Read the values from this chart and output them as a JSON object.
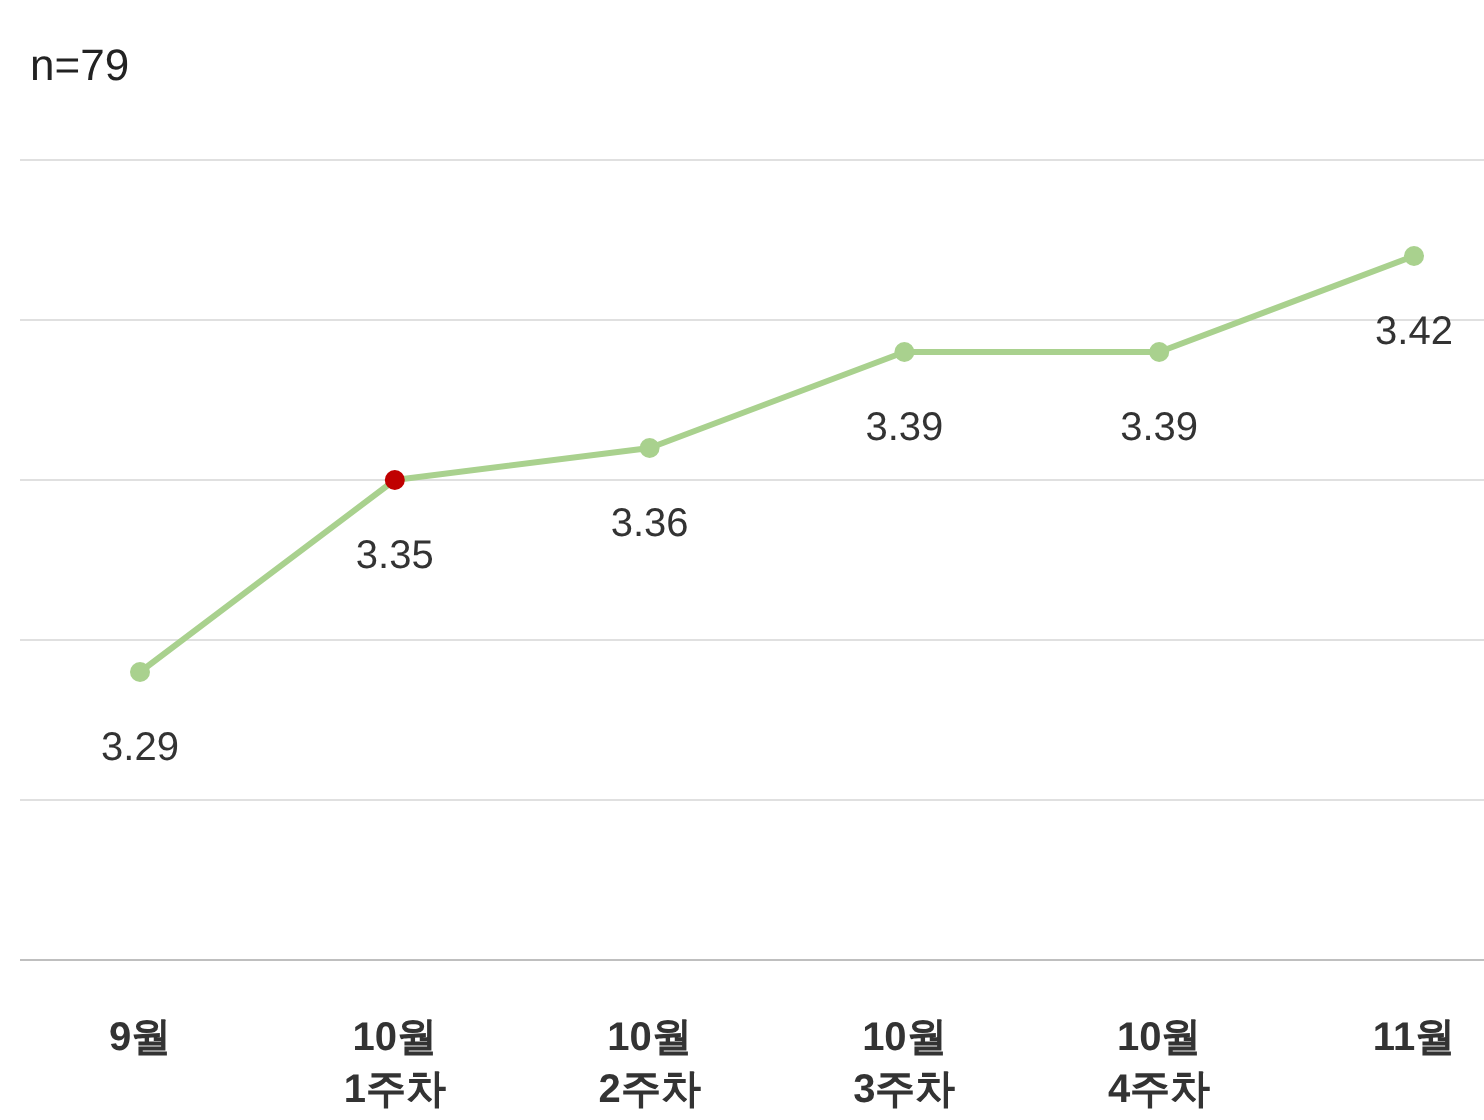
{
  "chart_data": {
    "type": "line",
    "title": "n=79",
    "categories": [
      "9월",
      "10월\n1주차",
      "10월\n2주차",
      "10월\n3주차",
      "10월\n4주차",
      "11월"
    ],
    "series": [
      {
        "color": "#a9d18e",
        "colors": [
          "#a9d18e",
          "#c00000",
          "#a9d18e",
          "#a9d18e",
          "#a9d18e",
          "#a9d18e"
        ],
        "values": [
          3.29,
          3.35,
          3.36,
          3.39,
          3.39,
          3.42
        ]
      }
    ],
    "ylim": [
      3.2,
      3.45
    ],
    "yticks": [
      {
        "value": 3.2,
        "label": null
      },
      {
        "value": 3.25,
        "label": null
      },
      {
        "value": 3.3,
        "label": null
      },
      {
        "value": 3.35,
        "label": null
      },
      {
        "value": 3.4,
        "label": null
      },
      {
        "value": 3.45,
        "label": null
      }
    ],
    "grid": "y",
    "tick_labels": "x",
    "marker": "circle",
    "line_style": "solid",
    "data_labels": true
  }
}
